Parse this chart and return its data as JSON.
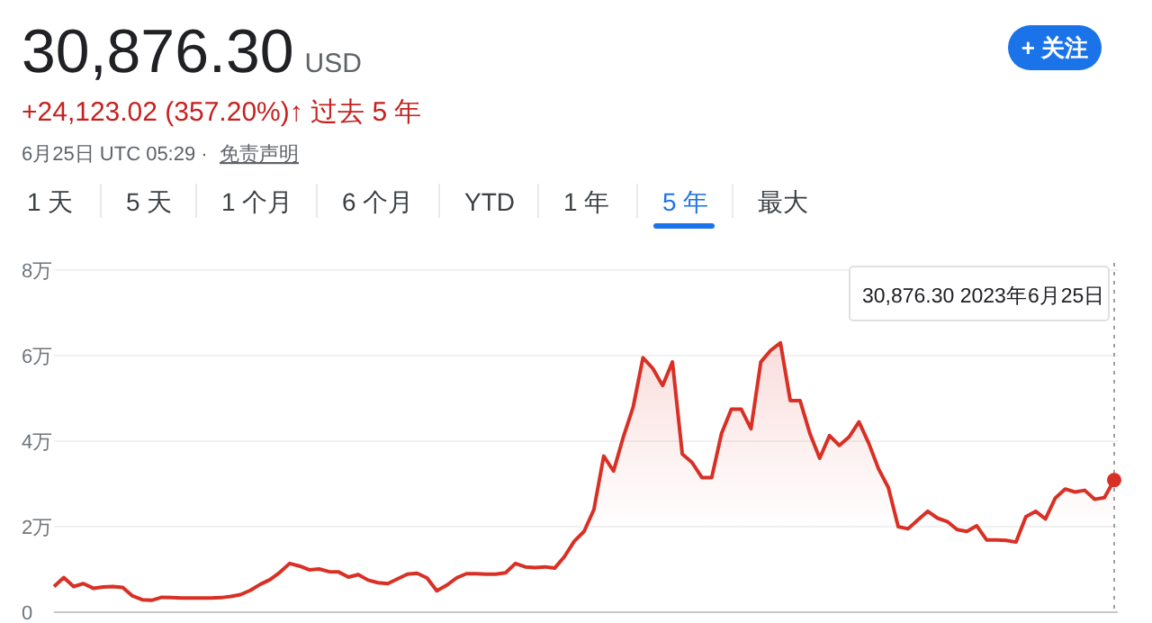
{
  "chart_data": {
    "type": "area",
    "title": "30,876.30",
    "color": "#d93025",
    "grid": "y",
    "tick_labels": "y",
    "ylim": [
      0,
      8
    ],
    "yticks": [
      {
        "value": 0,
        "label": "0"
      },
      {
        "value": 2,
        "label": "2万"
      },
      {
        "value": 4,
        "label": "4万"
      },
      {
        "value": 6,
        "label": "6万"
      },
      {
        "value": 8,
        "label": "8万"
      }
    ],
    "categories": [
      null,
      null,
      null,
      null,
      null,
      null,
      null,
      null,
      null,
      null,
      null,
      null,
      null,
      null,
      null,
      null,
      null,
      null,
      null,
      null,
      null,
      null,
      null,
      null,
      null,
      null,
      null,
      null,
      null,
      null,
      null,
      null,
      null,
      null,
      null,
      null,
      null,
      null,
      null,
      null,
      null,
      null,
      null,
      null,
      null,
      null,
      null,
      null,
      null,
      null,
      null,
      null,
      null,
      null,
      null,
      null,
      null,
      null,
      null,
      null,
      null,
      null,
      null,
      null,
      null,
      null,
      null,
      null,
      null,
      null,
      null,
      null,
      null,
      null,
      null,
      null,
      null,
      null,
      null,
      null,
      null,
      null,
      null,
      null,
      null,
      null,
      null,
      null,
      null,
      null,
      null,
      null,
      null,
      null,
      null,
      null,
      null,
      null,
      null,
      null,
      null,
      null,
      null,
      null,
      null,
      null,
      null,
      null,
      null
    ],
    "values": [
      0.6,
      0.81,
      0.6,
      0.67,
      0.56,
      0.59,
      0.6,
      0.58,
      0.38,
      0.29,
      0.28,
      0.35,
      0.34,
      0.33,
      0.33,
      0.33,
      0.33,
      0.34,
      0.37,
      0.41,
      0.51,
      0.65,
      0.76,
      0.93,
      1.14,
      1.08,
      0.99,
      1.01,
      0.95,
      0.94,
      0.82,
      0.88,
      0.75,
      0.69,
      0.67,
      0.78,
      0.89,
      0.91,
      0.8,
      0.5,
      0.63,
      0.8,
      0.9,
      0.9,
      0.89,
      0.89,
      0.92,
      1.14,
      1.06,
      1.04,
      1.06,
      1.03,
      1.3,
      1.66,
      1.89,
      2.4,
      3.65,
      3.3,
      4.1,
      4.8,
      5.95,
      5.7,
      5.3,
      5.85,
      3.7,
      3.5,
      3.15,
      3.15,
      4.18,
      4.75,
      4.75,
      4.29,
      5.85,
      6.12,
      6.3,
      4.95,
      4.95,
      4.18,
      3.6,
      4.13,
      3.9,
      4.1,
      4.45,
      3.95,
      3.35,
      2.91,
      2.0,
      1.95,
      2.16,
      2.36,
      2.2,
      2.12,
      1.93,
      1.89,
      2.02,
      1.69,
      1.69,
      1.68,
      1.64,
      2.23,
      2.36,
      2.18,
      2.67,
      2.88,
      2.81,
      2.85,
      2.64,
      2.68,
      3.09
    ],
    "annotations": [
      "USD",
      "+24,123.02 (357.20%)↑ 过去 5 年",
      "6月25日 UTC 05:29 ·",
      "免责声明",
      "1 天",
      "5 天",
      "1 个月",
      "6 个月",
      "YTD",
      "1 年",
      "5 年",
      "最大",
      "+ 关注",
      "30,876.30  2023年6月25日"
    ]
  }
}
